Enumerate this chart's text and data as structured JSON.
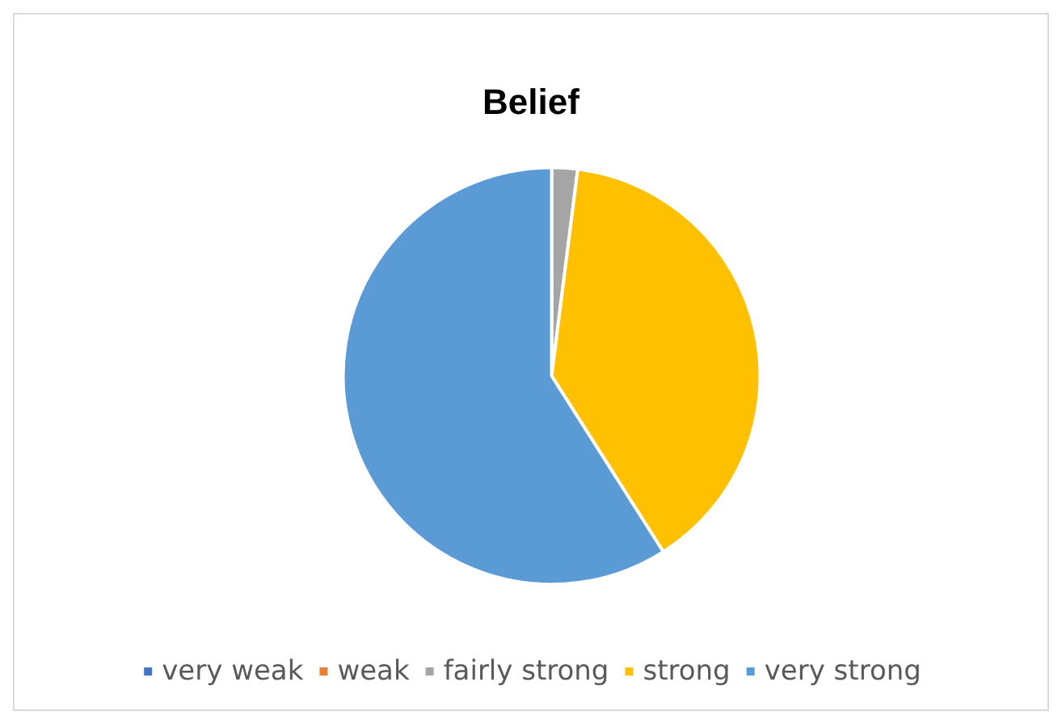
{
  "chart_data": {
    "type": "pie",
    "title": "Belief",
    "categories": [
      "very weak",
      "weak",
      "fairly strong",
      "strong",
      "very strong"
    ],
    "values": [
      0,
      0,
      2,
      39,
      59
    ],
    "colors": [
      "#4472c4",
      "#ed7d31",
      "#a5a5a5",
      "#ffc000",
      "#5b9bd5"
    ],
    "legend": "bottom"
  }
}
